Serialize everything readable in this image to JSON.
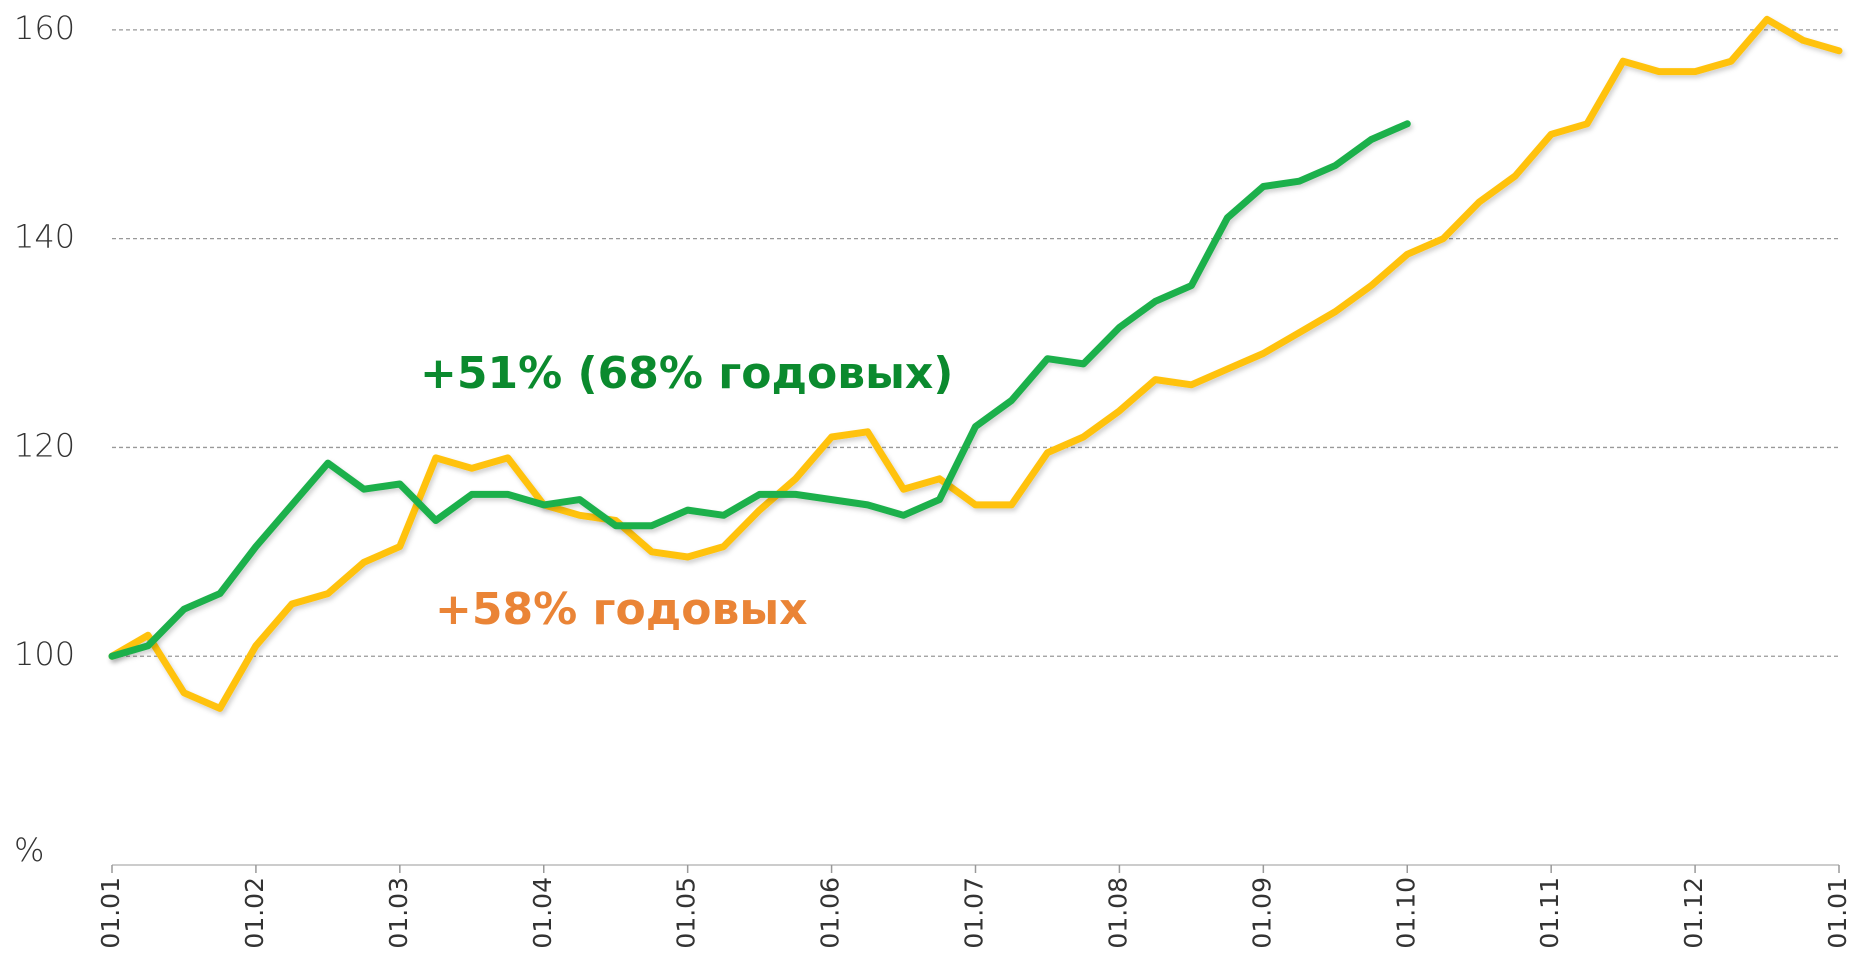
{
  "chart_data": {
    "type": "line",
    "y_label": "%",
    "annotations": [
      {
        "text": "+51% (68% годовых)",
        "color": "#0b8a2e"
      },
      {
        "text": "+58% годовых",
        "color": "#ea8436"
      }
    ],
    "xlim": [
      0,
      12
    ],
    "xticks": [
      {
        "value": 0,
        "label": "01.01"
      },
      {
        "value": 1,
        "label": "01.02"
      },
      {
        "value": 2,
        "label": "01.03"
      },
      {
        "value": 3,
        "label": "01.04"
      },
      {
        "value": 4,
        "label": "01.05"
      },
      {
        "value": 5,
        "label": "01.06"
      },
      {
        "value": 6,
        "label": "01.07"
      },
      {
        "value": 7,
        "label": "01.08"
      },
      {
        "value": 8,
        "label": "01.09"
      },
      {
        "value": 9,
        "label": "01.10"
      },
      {
        "value": 10,
        "label": "01.11"
      },
      {
        "value": 11,
        "label": "01.12"
      },
      {
        "value": 12,
        "label": "01.01"
      }
    ],
    "ylim": [
      80,
      162
    ],
    "yticks": [
      100,
      120,
      140,
      160
    ],
    "grid": true,
    "series": [
      {
        "color": "#ffc20e",
        "x": [
          0,
          0.25,
          0.5,
          0.75,
          1,
          1.25,
          1.5,
          1.75,
          2,
          2.25,
          2.5,
          2.75,
          3,
          3.25,
          3.5,
          3.75,
          4,
          4.25,
          4.5,
          4.75,
          5,
          5.25,
          5.5,
          5.75,
          6,
          6.25,
          6.5,
          6.75,
          7,
          7.25,
          7.5,
          7.75,
          8,
          8.25,
          8.5,
          8.75,
          9,
          9.25,
          9.5,
          9.75,
          10,
          10.25,
          10.5,
          10.75,
          11,
          11.25,
          11.5,
          11.75,
          12
        ],
        "values": [
          100,
          102,
          96.5,
          95,
          101,
          105,
          106,
          109,
          110.5,
          119,
          118,
          119,
          114.5,
          113.5,
          113,
          110,
          109.5,
          110.5,
          114,
          117,
          121,
          121.5,
          116,
          117,
          114.5,
          114.5,
          119.5,
          121,
          123.5,
          126.5,
          126,
          127.5,
          129,
          131,
          133,
          135.5,
          138.5,
          140,
          143.5,
          146,
          150,
          151,
          157,
          156,
          156,
          157,
          161,
          159,
          158
        ]
      },
      {
        "color": "#1db04c",
        "x": [
          0,
          0.25,
          0.5,
          0.75,
          1,
          1.25,
          1.5,
          1.75,
          2,
          2.25,
          2.5,
          2.75,
          3,
          3.25,
          3.5,
          3.75,
          4,
          4.25,
          4.5,
          4.75,
          5,
          5.25,
          5.5,
          5.75,
          6,
          6.25,
          6.5,
          6.75,
          7,
          7.25,
          7.5,
          7.75,
          8,
          8.25,
          8.5,
          8.75,
          9
        ],
        "values": [
          100,
          101,
          104.5,
          106,
          110.5,
          114.5,
          118.5,
          116,
          116.5,
          113,
          115.5,
          115.5,
          114.5,
          115,
          112.5,
          112.5,
          114,
          113.5,
          115.5,
          115.5,
          115,
          114.5,
          113.5,
          115,
          122,
          124.5,
          128.5,
          128,
          131.5,
          134,
          135.5,
          142,
          145,
          145.5,
          147,
          149.5,
          151
        ]
      }
    ]
  }
}
